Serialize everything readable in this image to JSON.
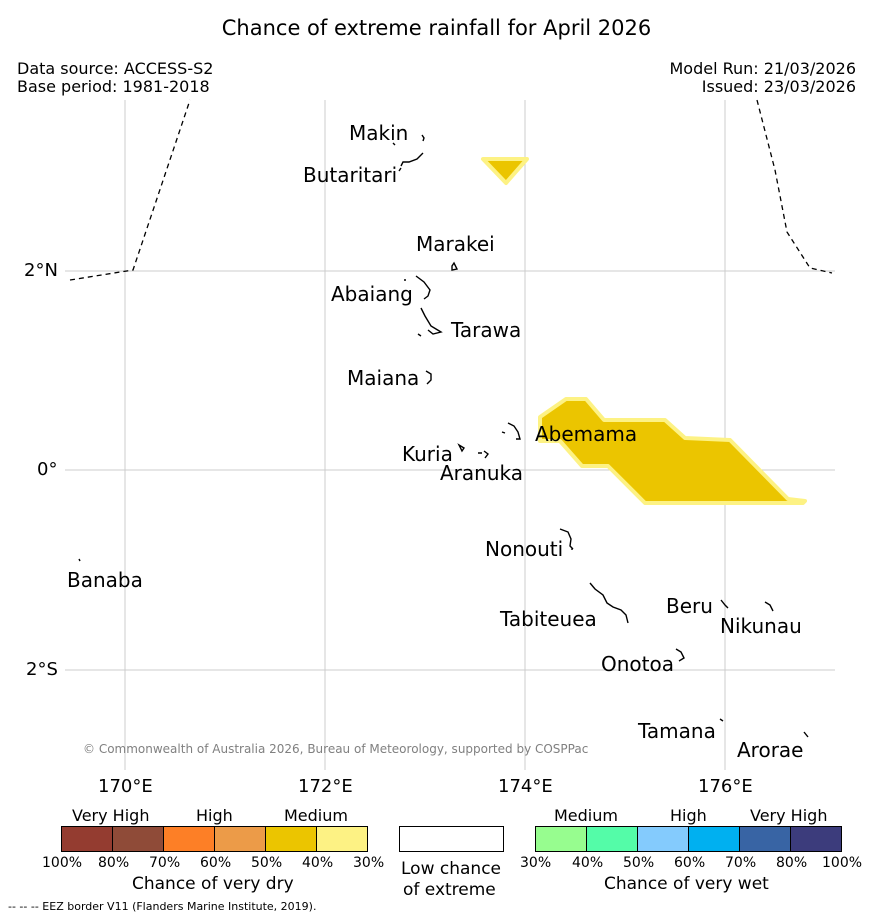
{
  "title": "Chance of extreme rainfall for April 2026",
  "meta": {
    "data_source": "Data source: ACCESS-S2",
    "base_period": "Base period: 1981-2018",
    "model_run": "Model Run: 21/03/2026",
    "issued": "Issued: 23/03/2026"
  },
  "axes": {
    "lat_labels": [
      "2°N",
      "0°",
      "2°S"
    ],
    "lon_labels": [
      "170°E",
      "172°E",
      "174°E",
      "176°E"
    ]
  },
  "islands": {
    "makin": "Makin",
    "butaritari": "Butaritari",
    "marakei": "Marakei",
    "abaiang": "Abaiang",
    "tarawa": "Tarawa",
    "maiana": "Maiana",
    "abemama": "Abemama",
    "kuria": "Kuria",
    "aranuka": "Aranuka",
    "nonouti": "Nonouti",
    "banaba": "Banaba",
    "tabiteuea": "Tabiteuea",
    "beru": "Beru",
    "nikunau": "Nikunau",
    "onotoa": "Onotoa",
    "tamana": "Tamana",
    "arorae": "Arorae"
  },
  "copyright": "© Commonwealth of Australia 2026, Bureau of Meteorology, supported by COSPPac",
  "legend": {
    "dry": {
      "headers": [
        "Very High",
        "High",
        "Medium"
      ],
      "colors": [
        "#943c30",
        "#8f4b38",
        "#fd7f26",
        "#ec9b48",
        "#ebc500",
        "#fdf284"
      ],
      "ticks": [
        "100%",
        "80%",
        "70%",
        "60%",
        "50%",
        "40%",
        "30%"
      ],
      "caption": "Chance of very dry"
    },
    "low": {
      "color": "#ffffff",
      "caption_line1": "Low chance",
      "caption_line2": "of extreme"
    },
    "wet": {
      "headers": [
        "Medium",
        "High",
        "Very High"
      ],
      "colors": [
        "#97fd8f",
        "#54fca8",
        "#84cbfd",
        "#00b0f0",
        "#3864a4",
        "#3c3c7c"
      ],
      "ticks": [
        "30%",
        "40%",
        "50%",
        "60%",
        "70%",
        "80%",
        "100%"
      ],
      "caption": "Chance of very wet"
    }
  },
  "footnote": "--  --  -- EEZ border V11 (Flanders Marine Institute, 2019).",
  "colors": {
    "medium_dry_fill": "#ebc500",
    "medium_dry_edge": "#fdf284",
    "grid": "#cccccc"
  }
}
